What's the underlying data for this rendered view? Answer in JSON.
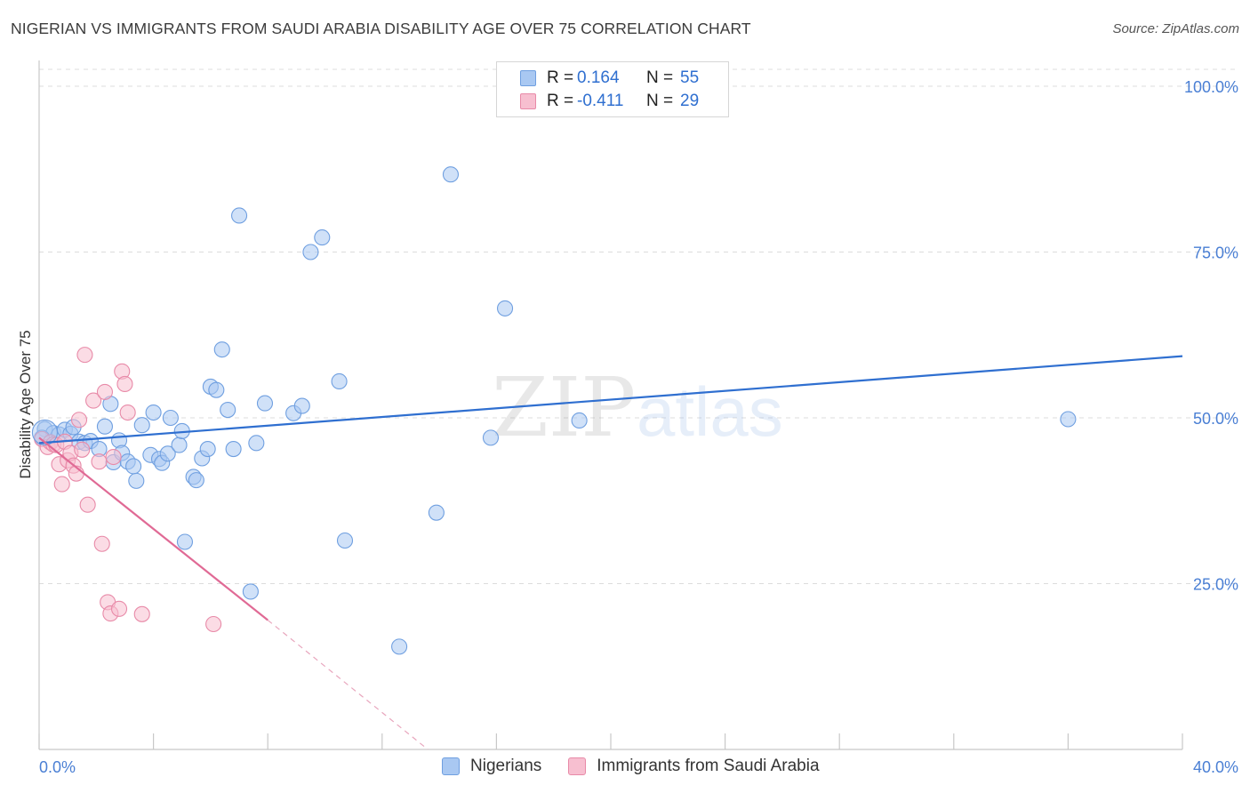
{
  "header": {
    "title": "NIGERIAN VS IMMIGRANTS FROM SAUDI ARABIA DISABILITY AGE OVER 75 CORRELATION CHART",
    "source": "Source: ZipAtlas.com"
  },
  "watermark": {
    "zip": "ZIP",
    "atlas": "atlas"
  },
  "legend": {
    "rows": [
      {
        "r_label": "R =",
        "r_value": "0.164",
        "n_label": "N =",
        "n_value": "55",
        "color": "#a9c8f2",
        "stroke": "#6f9fe0"
      },
      {
        "r_label": "R =",
        "r_value": "-0.411",
        "n_label": "N =",
        "n_value": "29",
        "color": "#f7bfd0",
        "stroke": "#e88aa8"
      }
    ]
  },
  "bottom_legend": {
    "items": [
      {
        "label": "Nigerians",
        "color": "#a9c8f2",
        "stroke": "#6f9fe0"
      },
      {
        "label": "Immigrants from Saudi Arabia",
        "color": "#f7bfd0",
        "stroke": "#e88aa8"
      }
    ]
  },
  "chart_data": {
    "type": "scatter",
    "title": "NIGERIAN VS IMMIGRANTS FROM SAUDI ARABIA DISABILITY AGE OVER 75 CORRELATION CHART",
    "xlabel": "",
    "ylabel": "Disability Age Over 75",
    "xlim": [
      0,
      40
    ],
    "ylim": [
      0,
      100
    ],
    "x_tick_labels": {
      "left": "0.0%",
      "right": "40.0%"
    },
    "y_ticks": [
      {
        "value": 100,
        "label": "100.0%"
      },
      {
        "value": 75,
        "label": "75.0%"
      },
      {
        "value": 50,
        "label": "50.0%"
      },
      {
        "value": 25,
        "label": "25.0%"
      }
    ],
    "grid": true,
    "series": [
      {
        "name": "Nigerians",
        "color": "#a9c8f2",
        "stroke": "#6f9fe0",
        "trend": {
          "x": [
            0,
            40
          ],
          "y": [
            46.2,
            59.3
          ],
          "color": "#2f6fd0"
        },
        "points": [
          [
            0.2,
            48.3
          ],
          [
            0.5,
            47.7
          ],
          [
            0.7,
            47.5
          ],
          [
            0.9,
            48.2
          ],
          [
            1.1,
            47.6
          ],
          [
            1.2,
            48.6
          ],
          [
            1.4,
            46.4
          ],
          [
            1.6,
            46.2
          ],
          [
            1.8,
            46.5
          ],
          [
            2.1,
            45.3
          ],
          [
            2.3,
            48.7
          ],
          [
            2.5,
            52.1
          ],
          [
            2.6,
            43.3
          ],
          [
            2.8,
            46.6
          ],
          [
            2.9,
            44.7
          ],
          [
            3.1,
            43.4
          ],
          [
            3.3,
            42.7
          ],
          [
            3.4,
            40.5
          ],
          [
            3.6,
            48.9
          ],
          [
            3.9,
            44.4
          ],
          [
            4.0,
            50.8
          ],
          [
            4.2,
            43.8
          ],
          [
            4.3,
            43.2
          ],
          [
            4.5,
            44.6
          ],
          [
            4.6,
            50.0
          ],
          [
            4.9,
            45.9
          ],
          [
            5.0,
            48.0
          ],
          [
            5.1,
            31.3
          ],
          [
            5.4,
            41.1
          ],
          [
            5.5,
            40.6
          ],
          [
            5.7,
            43.9
          ],
          [
            5.9,
            45.3
          ],
          [
            6.0,
            54.7
          ],
          [
            6.2,
            54.2
          ],
          [
            6.4,
            60.3
          ],
          [
            6.6,
            51.2
          ],
          [
            6.8,
            45.3
          ],
          [
            7.0,
            80.5
          ],
          [
            7.4,
            23.8
          ],
          [
            7.6,
            46.2
          ],
          [
            7.9,
            52.2
          ],
          [
            8.9,
            50.7
          ],
          [
            9.2,
            51.8
          ],
          [
            9.5,
            75.0
          ],
          [
            9.9,
            77.2
          ],
          [
            10.5,
            55.5
          ],
          [
            10.7,
            31.5
          ],
          [
            12.6,
            15.5
          ],
          [
            13.9,
            35.7
          ],
          [
            14.4,
            86.7
          ],
          [
            15.8,
            47.0
          ],
          [
            16.3,
            66.5
          ],
          [
            18.9,
            49.6
          ],
          [
            36.0,
            49.8
          ],
          [
            0.1,
            47.0
          ]
        ]
      },
      {
        "name": "Immigrants from Saudi Arabia",
        "color": "#f7bfd0",
        "stroke": "#e88aa8",
        "trend": {
          "x": [
            0,
            8.0
          ],
          "y": [
            47.0,
            19.5
          ],
          "dash_to": [
            13.6,
            0
          ],
          "color": "#e06a95"
        },
        "points": [
          [
            0.1,
            46.8
          ],
          [
            0.3,
            45.6
          ],
          [
            0.4,
            46.3
          ],
          [
            0.5,
            46.0
          ],
          [
            0.6,
            45.9
          ],
          [
            0.7,
            43.0
          ],
          [
            0.8,
            40.0
          ],
          [
            0.9,
            46.4
          ],
          [
            1.0,
            43.6
          ],
          [
            1.1,
            44.7
          ],
          [
            1.2,
            42.8
          ],
          [
            1.3,
            41.6
          ],
          [
            1.4,
            49.7
          ],
          [
            1.6,
            59.5
          ],
          [
            1.7,
            36.9
          ],
          [
            1.9,
            52.6
          ],
          [
            2.1,
            43.4
          ],
          [
            2.2,
            31.0
          ],
          [
            2.3,
            53.9
          ],
          [
            2.4,
            22.2
          ],
          [
            2.5,
            20.5
          ],
          [
            2.6,
            44.1
          ],
          [
            2.8,
            21.2
          ],
          [
            2.9,
            57.0
          ],
          [
            3.0,
            55.1
          ],
          [
            3.1,
            50.8
          ],
          [
            3.6,
            20.4
          ],
          [
            6.1,
            18.9
          ],
          [
            1.5,
            45.2
          ]
        ]
      }
    ]
  }
}
